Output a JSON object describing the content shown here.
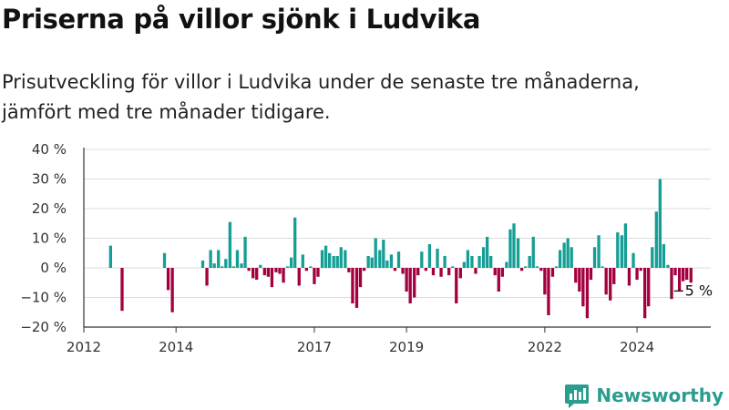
{
  "header": {
    "title": "Priserna på villor sjönk i Ludvika",
    "subtitle": "Prisutveckling för villor i Ludvika under de senaste tre månaderna, jämfört med tre månader tidigare."
  },
  "brand": {
    "name": "Newsworthy",
    "icon": "newsworthy-logo-icon",
    "color": "#2a9d8f"
  },
  "colors": {
    "positive": "#159e95",
    "negative": "#a3003f",
    "grid": "#dddddd",
    "axis": "#333333"
  },
  "chart_data": {
    "type": "bar",
    "x_unit": "decimal year",
    "xlim": [
      2012,
      2025.6
    ],
    "ylim": [
      -20,
      40
    ],
    "y_ticks": [
      {
        "value": 40,
        "label": "40 %"
      },
      {
        "value": 30,
        "label": "30 %"
      },
      {
        "value": 20,
        "label": "20 %"
      },
      {
        "value": 10,
        "label": "10 %"
      },
      {
        "value": 0,
        "label": "0 %"
      },
      {
        "value": -10,
        "label": "−10 %"
      },
      {
        "value": -20,
        "label": "−20 %"
      }
    ],
    "x_ticks": [
      {
        "value": 2012,
        "label": "2012"
      },
      {
        "value": 2014,
        "label": "2014"
      },
      {
        "value": 2017,
        "label": "2017"
      },
      {
        "value": 2019,
        "label": "2019"
      },
      {
        "value": 2022,
        "label": "2022"
      },
      {
        "value": 2024,
        "label": "2024"
      }
    ],
    "grid": true,
    "last_value_label": "−5 %",
    "bars": [
      [
        2012.58,
        7.5
      ],
      [
        2012.83,
        -14.5
      ],
      [
        2013.75,
        5
      ],
      [
        2013.83,
        -7.5
      ],
      [
        2013.92,
        -15
      ],
      [
        2014.58,
        2.5
      ],
      [
        2014.67,
        -6
      ],
      [
        2014.75,
        6
      ],
      [
        2014.83,
        1.5
      ],
      [
        2014.92,
        6
      ],
      [
        2015.0,
        0.5
      ],
      [
        2015.08,
        3
      ],
      [
        2015.17,
        15.5
      ],
      [
        2015.25,
        0.5
      ],
      [
        2015.33,
        6
      ],
      [
        2015.42,
        1.5
      ],
      [
        2015.5,
        10.5
      ],
      [
        2015.58,
        -1
      ],
      [
        2015.67,
        -3.5
      ],
      [
        2015.75,
        -4
      ],
      [
        2015.83,
        1
      ],
      [
        2015.92,
        -2.5
      ],
      [
        2016.0,
        -3
      ],
      [
        2016.08,
        -6.5
      ],
      [
        2016.17,
        -1.5
      ],
      [
        2016.25,
        -2
      ],
      [
        2016.33,
        -5
      ],
      [
        2016.42,
        0.5
      ],
      [
        2016.5,
        3.5
      ],
      [
        2016.58,
        17
      ],
      [
        2016.67,
        -6
      ],
      [
        2016.75,
        4.5
      ],
      [
        2016.83,
        -1
      ],
      [
        2016.92,
        0.5
      ],
      [
        2017.0,
        -5.5
      ],
      [
        2017.08,
        -3
      ],
      [
        2017.17,
        6
      ],
      [
        2017.25,
        7.5
      ],
      [
        2017.33,
        5
      ],
      [
        2017.42,
        4
      ],
      [
        2017.5,
        4
      ],
      [
        2017.58,
        7
      ],
      [
        2017.67,
        6
      ],
      [
        2017.75,
        -1.5
      ],
      [
        2017.83,
        -12
      ],
      [
        2017.92,
        -13.5
      ],
      [
        2018.0,
        -6.5
      ],
      [
        2018.08,
        -1
      ],
      [
        2018.17,
        4
      ],
      [
        2018.25,
        3.5
      ],
      [
        2018.33,
        10
      ],
      [
        2018.42,
        6
      ],
      [
        2018.5,
        9.5
      ],
      [
        2018.58,
        2.5
      ],
      [
        2018.67,
        4.5
      ],
      [
        2018.75,
        -1
      ],
      [
        2018.83,
        5.5
      ],
      [
        2018.92,
        -2
      ],
      [
        2019.0,
        -8
      ],
      [
        2019.08,
        -12
      ],
      [
        2019.17,
        -10
      ],
      [
        2019.25,
        -2.5
      ],
      [
        2019.33,
        5.5
      ],
      [
        2019.42,
        -1
      ],
      [
        2019.5,
        8
      ],
      [
        2019.58,
        -2.5
      ],
      [
        2019.67,
        6.5
      ],
      [
        2019.75,
        -3
      ],
      [
        2019.83,
        4
      ],
      [
        2019.92,
        -2.5
      ],
      [
        2020.0,
        0.5
      ],
      [
        2020.08,
        -12
      ],
      [
        2020.17,
        -3.5
      ],
      [
        2020.25,
        2
      ],
      [
        2020.33,
        6
      ],
      [
        2020.42,
        4
      ],
      [
        2020.5,
        -2
      ],
      [
        2020.58,
        4
      ],
      [
        2020.67,
        7
      ],
      [
        2020.75,
        10.5
      ],
      [
        2020.83,
        4
      ],
      [
        2020.92,
        -2.5
      ],
      [
        2021.0,
        -8
      ],
      [
        2021.08,
        -3
      ],
      [
        2021.17,
        2
      ],
      [
        2021.25,
        13
      ],
      [
        2021.33,
        15
      ],
      [
        2021.42,
        10
      ],
      [
        2021.5,
        -1
      ],
      [
        2021.58,
        0.5
      ],
      [
        2021.67,
        4
      ],
      [
        2021.75,
        10.5
      ],
      [
        2021.83,
        0.5
      ],
      [
        2021.92,
        -1
      ],
      [
        2022.0,
        -9
      ],
      [
        2022.08,
        -16
      ],
      [
        2022.17,
        -3
      ],
      [
        2022.25,
        0.5
      ],
      [
        2022.33,
        6
      ],
      [
        2022.42,
        8.5
      ],
      [
        2022.5,
        10
      ],
      [
        2022.58,
        7
      ],
      [
        2022.67,
        -5
      ],
      [
        2022.75,
        -8
      ],
      [
        2022.83,
        -13
      ],
      [
        2022.92,
        -17
      ],
      [
        2023.0,
        -4
      ],
      [
        2023.08,
        7
      ],
      [
        2023.17,
        11
      ],
      [
        2023.25,
        0.5
      ],
      [
        2023.33,
        -9
      ],
      [
        2023.42,
        -11
      ],
      [
        2023.5,
        -5.5
      ],
      [
        2023.58,
        12
      ],
      [
        2023.67,
        11
      ],
      [
        2023.75,
        15
      ],
      [
        2023.83,
        -6
      ],
      [
        2023.92,
        5
      ],
      [
        2024.0,
        -4
      ],
      [
        2024.08,
        -1
      ],
      [
        2024.17,
        -17
      ],
      [
        2024.25,
        -13
      ],
      [
        2024.33,
        7
      ],
      [
        2024.42,
        19
      ],
      [
        2024.5,
        30
      ],
      [
        2024.58,
        8
      ],
      [
        2024.67,
        1
      ],
      [
        2024.75,
        -10.5
      ],
      [
        2024.83,
        -2.5
      ],
      [
        2024.92,
        -8
      ],
      [
        2025.0,
        -4.5
      ],
      [
        2025.08,
        -4
      ],
      [
        2025.17,
        -5
      ]
    ]
  }
}
